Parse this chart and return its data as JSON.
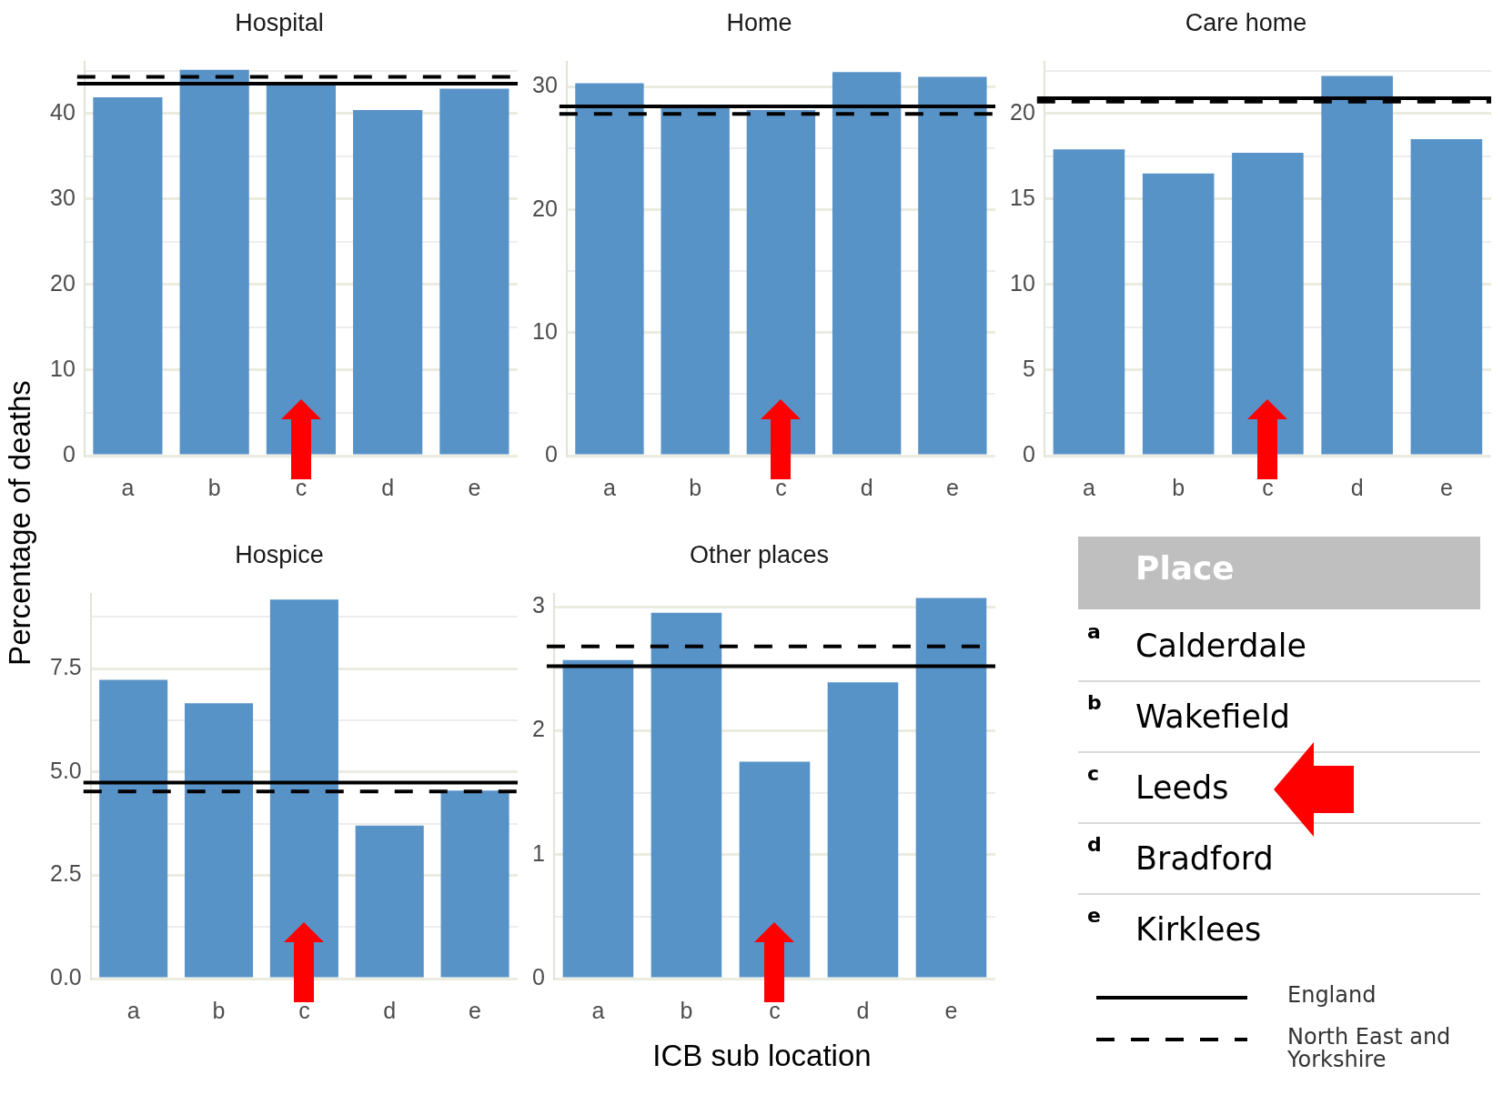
{
  "chart_data": [
    {
      "type": "bar",
      "title": "Hospital",
      "categories": [
        "a",
        "b",
        "c",
        "d",
        "e"
      ],
      "values": [
        41.9,
        45.1,
        43.5,
        40.4,
        42.9
      ],
      "color": "#5893c8",
      "ylim": [
        0,
        46
      ],
      "yticks": [
        0,
        {
          "value": 5,
          "label": null
        },
        10,
        {
          "value": 15,
          "label": null
        },
        20,
        {
          "value": 25,
          "label": null
        },
        30,
        {
          "value": 35,
          "label": null
        },
        40,
        {
          "value": 45,
          "label": null
        }
      ],
      "grid": "y",
      "ref_lines": [
        {
          "axis": "y",
          "value": 43.5,
          "label": "England",
          "color": "#000000",
          "line_style": "solid"
        },
        {
          "axis": "y",
          "value": 44.3,
          "label": "North East and Yorkshire",
          "color": "#000000",
          "line_style": "dashed"
        }
      ]
    },
    {
      "type": "bar",
      "title": "Home",
      "categories": [
        "a",
        "b",
        "c",
        "d",
        "e"
      ],
      "values": [
        30.3,
        28.5,
        28.1,
        31.2,
        30.8
      ],
      "color": "#5893c8",
      "ylim": [
        0,
        32
      ],
      "yticks": [
        0,
        {
          "value": 5,
          "label": null
        },
        10,
        {
          "value": 15,
          "label": null
        },
        20,
        {
          "value": 25,
          "label": null
        },
        30
      ],
      "grid": "y",
      "ref_lines": [
        {
          "axis": "y",
          "value": 28.4,
          "color": "#000000",
          "line_style": "solid"
        },
        {
          "axis": "y",
          "value": 27.8,
          "color": "#000000",
          "line_style": "dashed"
        }
      ]
    },
    {
      "type": "bar",
      "title": "Care home",
      "categories": [
        "a",
        "b",
        "c",
        "d",
        "e"
      ],
      "values": [
        17.9,
        16.5,
        17.7,
        22.2,
        18.5
      ],
      "color": "#5893c8",
      "ylim": [
        0,
        23
      ],
      "yticks": [
        0,
        {
          "value": 2.5,
          "label": null
        },
        5,
        {
          "value": 7.5,
          "label": null
        },
        10,
        {
          "value": 12.5,
          "label": null
        },
        15,
        {
          "value": 17.5,
          "label": null
        },
        20,
        {
          "value": 22.5,
          "label": null
        }
      ],
      "grid": "y",
      "ref_lines": [
        {
          "axis": "y",
          "value": 20.9,
          "color": "#000000",
          "line_style": "solid"
        },
        {
          "axis": "y",
          "value": 20.7,
          "color": "#000000",
          "line_style": "dashed"
        }
      ]
    },
    {
      "type": "bar",
      "title": "Hospice",
      "ylabel": "Percentage of deaths",
      "categories": [
        "a",
        "b",
        "c",
        "d",
        "e"
      ],
      "values": [
        7.23,
        6.66,
        9.17,
        3.7,
        4.55
      ],
      "color": "#5893c8",
      "ylim": [
        0,
        9.3
      ],
      "yticks": [
        {
          "value": 0,
          "label": "0.0"
        },
        {
          "value": 1.25,
          "label": null
        },
        {
          "value": 2.5,
          "label": "2.5"
        },
        {
          "value": 3.75,
          "label": null
        },
        {
          "value": 5,
          "label": "5.0"
        },
        {
          "value": 6.25,
          "label": null
        },
        {
          "value": 7.5,
          "label": "7.5"
        },
        {
          "value": 8.75,
          "label": null
        }
      ],
      "grid": "y",
      "ref_lines": [
        {
          "axis": "y",
          "value": 4.74,
          "color": "#000000",
          "line_style": "solid"
        },
        {
          "axis": "y",
          "value": 4.53,
          "color": "#000000",
          "line_style": "dashed"
        }
      ]
    },
    {
      "type": "bar",
      "title": "Other places",
      "xlabel": "ICB sub location",
      "categories": [
        "a",
        "b",
        "c",
        "d",
        "e"
      ],
      "values": [
        2.57,
        2.95,
        1.75,
        2.39,
        3.07
      ],
      "color": "#5893c8",
      "ylim": [
        0,
        3.1
      ],
      "yticks": [
        0,
        {
          "value": 0.5,
          "label": null
        },
        1,
        {
          "value": 1.5,
          "label": null
        },
        2,
        {
          "value": 2.5,
          "label": null
        },
        3
      ],
      "grid": "y",
      "ref_lines": [
        {
          "axis": "y",
          "value": 2.52,
          "color": "#000000",
          "line_style": "solid"
        },
        {
          "axis": "y",
          "value": 2.68,
          "color": "#000000",
          "line_style": "dashed"
        }
      ]
    },
    {
      "type": "other",
      "title": "Place",
      "categories": [
        "a",
        "b",
        "c",
        "d",
        "e"
      ],
      "annotations": [
        "Calderdale",
        "Wakefield",
        "Leeds",
        "Bradford",
        "Kirklees"
      ]
    }
  ]
}
